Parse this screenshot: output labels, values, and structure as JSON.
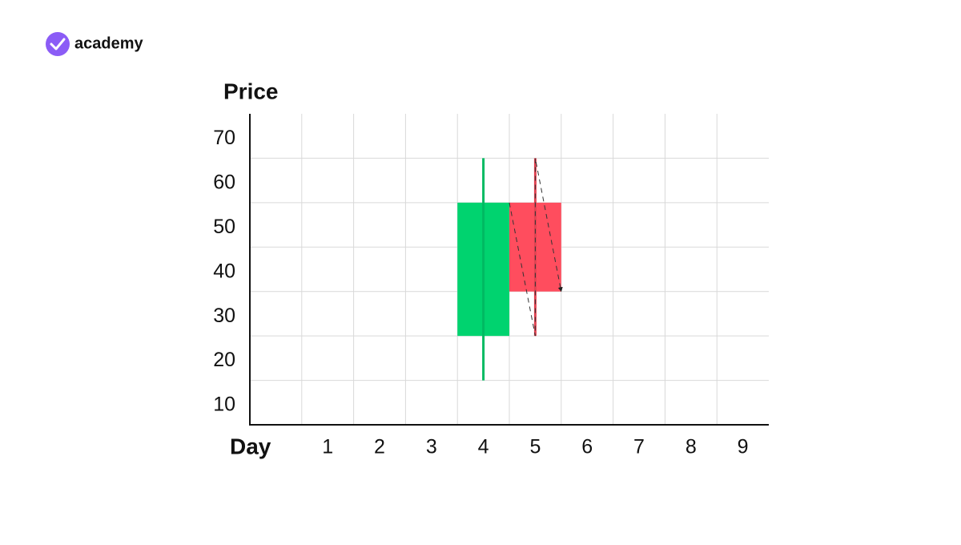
{
  "brand": "academy",
  "chart_data": {
    "type": "candlestick",
    "y_label": "Price",
    "x_label": "Day",
    "candles": [
      {
        "x": 4,
        "open": 30,
        "high": 70,
        "low": 20,
        "close": 60,
        "color": "#00d36f"
      },
      {
        "x": 5,
        "open": 60,
        "high": 70,
        "low": 30,
        "close": 40,
        "color": "#ff4d5e"
      }
    ],
    "xlim": [
      -0.5,
      9.5
    ],
    "xticks": [
      1,
      2,
      3,
      4,
      5,
      6,
      7,
      8,
      9
    ],
    "ylim": [
      10,
      80
    ],
    "yticks": [
      10,
      20,
      30,
      40,
      50,
      60,
      70
    ],
    "grid": true
  }
}
